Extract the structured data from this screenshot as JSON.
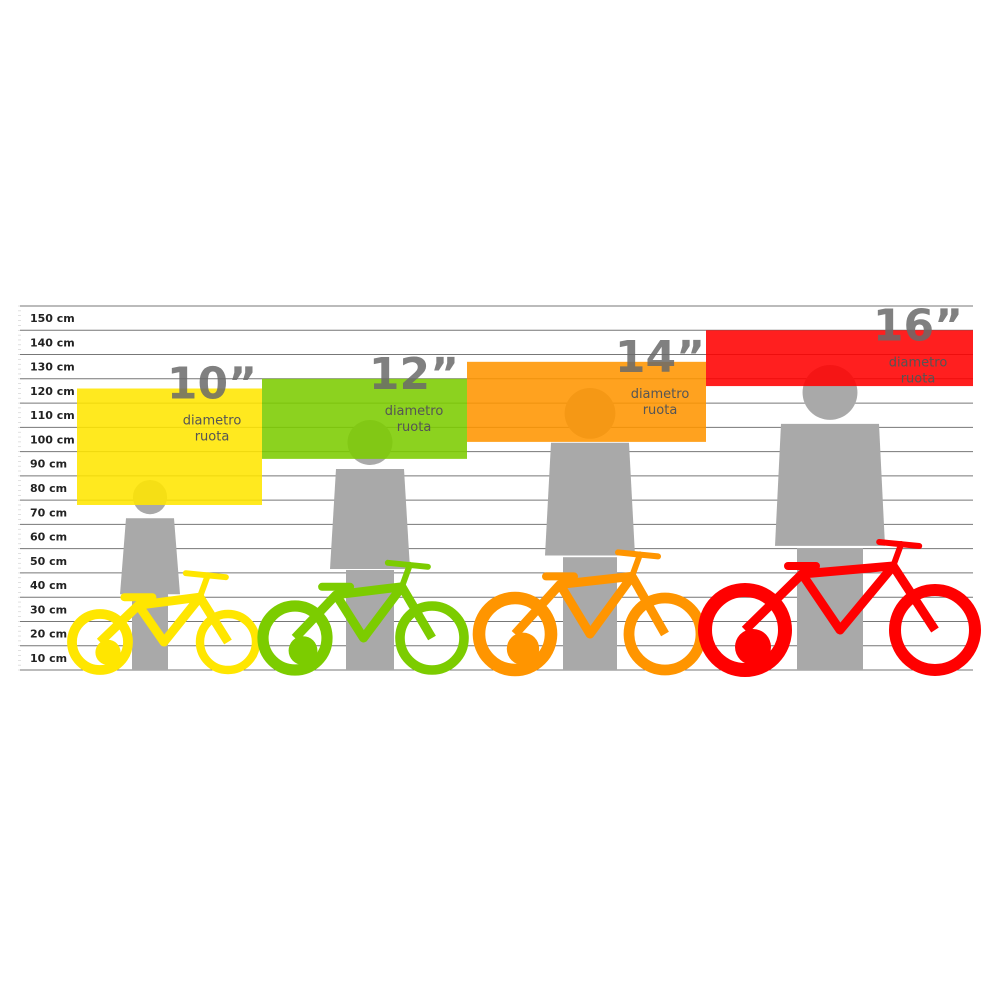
{
  "chart_data": {
    "type": "range-bar",
    "title": "",
    "unit": "cm",
    "ylim": [
      0,
      150
    ],
    "grid": true,
    "y_ticks": [
      "10 cm",
      "20 cm",
      "30 cm",
      "40 cm",
      "50 cm",
      "60 cm",
      "70 cm",
      "80 cm",
      "90 cm",
      "100 cm",
      "110 cm",
      "120 cm",
      "130 cm",
      "140 cm",
      "150 cm"
    ],
    "series": [
      {
        "label": "10”",
        "sublabel_1": "diametro",
        "sublabel_2": "ruota",
        "min": 68,
        "max": 116,
        "color": "#ffe600"
      },
      {
        "label": "12”",
        "sublabel_1": "diametro",
        "sublabel_2": "ruota",
        "min": 87,
        "max": 120,
        "color": "#7ccc00"
      },
      {
        "label": "14”",
        "sublabel_1": "diametro",
        "sublabel_2": "ruota",
        "min": 94,
        "max": 127,
        "color": "#ff9500"
      },
      {
        "label": "16”",
        "sublabel_1": "diametro",
        "sublabel_2": "ruota",
        "min": 117,
        "max": 140,
        "color": "#ff0000"
      }
    ],
    "silhouette_color": "#a9a9a9"
  }
}
